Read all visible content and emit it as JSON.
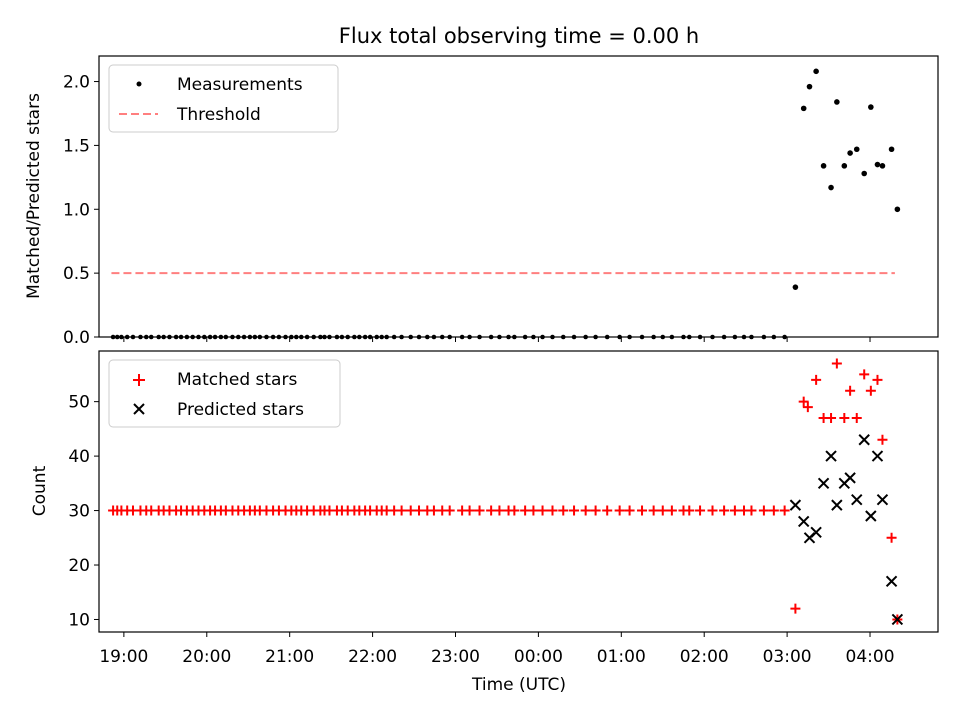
{
  "chart_data": [
    {
      "type": "scatter",
      "title": "Flux total observing time = 0.00 h",
      "ylabel": "Matched/Predicted stars",
      "xlim": [
        18.7,
        4.82
      ],
      "ylim": [
        0,
        2.2
      ],
      "yticks": [
        0.0,
        0.5,
        1.0,
        1.5,
        2.0
      ],
      "ytick_labels": [
        "0.0",
        "0.5",
        "1.0",
        "1.5",
        "2.0"
      ],
      "legend": {
        "position": "top-left",
        "entries": [
          "Measurements",
          "Threshold"
        ]
      },
      "threshold": {
        "value": 0.5,
        "x_start": 18.85,
        "x_end": 4.3,
        "color": "#ff7f7f",
        "label": "Threshold"
      },
      "measurements": {
        "name": "Measurements",
        "color": "#000000",
        "zero_x": [
          18.87,
          18.92,
          18.97,
          19.04,
          19.11,
          19.2,
          19.27,
          19.33,
          19.42,
          19.48,
          19.55,
          19.63,
          19.69,
          19.76,
          19.83,
          19.9,
          19.97,
          20.04,
          20.1,
          20.17,
          20.23,
          20.31,
          20.38,
          20.45,
          20.52,
          20.58,
          20.64,
          20.72,
          20.8,
          20.87,
          20.95,
          21.02,
          21.08,
          21.14,
          21.21,
          21.29,
          21.37,
          21.42,
          21.48,
          21.57,
          21.63,
          21.7,
          21.78,
          21.84,
          21.91,
          21.97,
          22.05,
          22.11,
          22.17,
          22.26,
          22.35,
          22.46,
          22.56,
          22.66,
          22.74,
          22.84,
          22.93,
          23.08,
          23.17,
          23.29,
          23.43,
          23.53,
          23.64,
          23.71,
          23.84,
          23.94,
          24.05,
          24.17,
          24.3,
          24.43,
          24.57,
          24.69,
          24.83,
          24.98,
          25.1,
          25.25,
          25.39,
          25.5,
          25.61,
          25.75,
          25.82,
          25.95,
          26.1,
          26.24,
          26.37,
          26.48,
          26.57,
          26.72,
          26.84,
          26.97
        ],
        "x": [
          27.1,
          27.2,
          27.27,
          27.35,
          27.44,
          27.53,
          27.6,
          27.69,
          27.76,
          27.84,
          27.93,
          28.01,
          28.09,
          28.15,
          28.26,
          28.33
        ],
        "y": [
          0.39,
          1.79,
          1.96,
          2.08,
          1.34,
          1.17,
          1.84,
          1.34,
          1.44,
          1.47,
          1.28,
          1.8,
          1.35,
          1.34,
          1.47,
          1.0
        ]
      }
    },
    {
      "type": "scatter",
      "ylabel": "Count",
      "xlabel": "Time (UTC)",
      "xlim": [
        18.7,
        4.82
      ],
      "ylim": [
        7.7,
        59.3
      ],
      "yticks": [
        10,
        20,
        30,
        40,
        50
      ],
      "ytick_labels": [
        "10",
        "20",
        "30",
        "40",
        "50"
      ],
      "xticks": [
        19.0,
        20.0,
        21.0,
        22.0,
        23.0,
        24.0,
        25.0,
        26.0,
        27.0,
        28.0
      ],
      "xtick_labels": [
        "19:00",
        "20:00",
        "21:00",
        "22:00",
        "23:00",
        "00:00",
        "01:00",
        "02:00",
        "03:00",
        "04:00"
      ],
      "legend": {
        "position": "top-left",
        "entries": [
          "Matched stars",
          "Predicted stars"
        ]
      },
      "matched_count_before_3am": 30,
      "series": [
        {
          "name": "Matched stars",
          "marker": "+",
          "color": "#ff0000",
          "x": [
            27.1,
            27.2,
            27.25,
            27.35,
            27.44,
            27.53,
            27.6,
            27.69,
            27.76,
            27.84,
            27.93,
            28.01,
            28.09,
            28.15,
            28.26,
            28.33
          ],
          "y": [
            12,
            50,
            49,
            54,
            47,
            47,
            57,
            47,
            52,
            47,
            55,
            52,
            54,
            43,
            25,
            10
          ]
        },
        {
          "name": "Predicted stars",
          "marker": "x",
          "color": "#000000",
          "x": [
            27.1,
            27.2,
            27.27,
            27.35,
            27.44,
            27.53,
            27.6,
            27.69,
            27.76,
            27.84,
            27.93,
            28.01,
            28.09,
            28.15,
            28.26,
            28.33
          ],
          "y": [
            31,
            28,
            25,
            26,
            35,
            40,
            31,
            35,
            36,
            32,
            43,
            29,
            40,
            32,
            17,
            10
          ]
        }
      ]
    }
  ]
}
